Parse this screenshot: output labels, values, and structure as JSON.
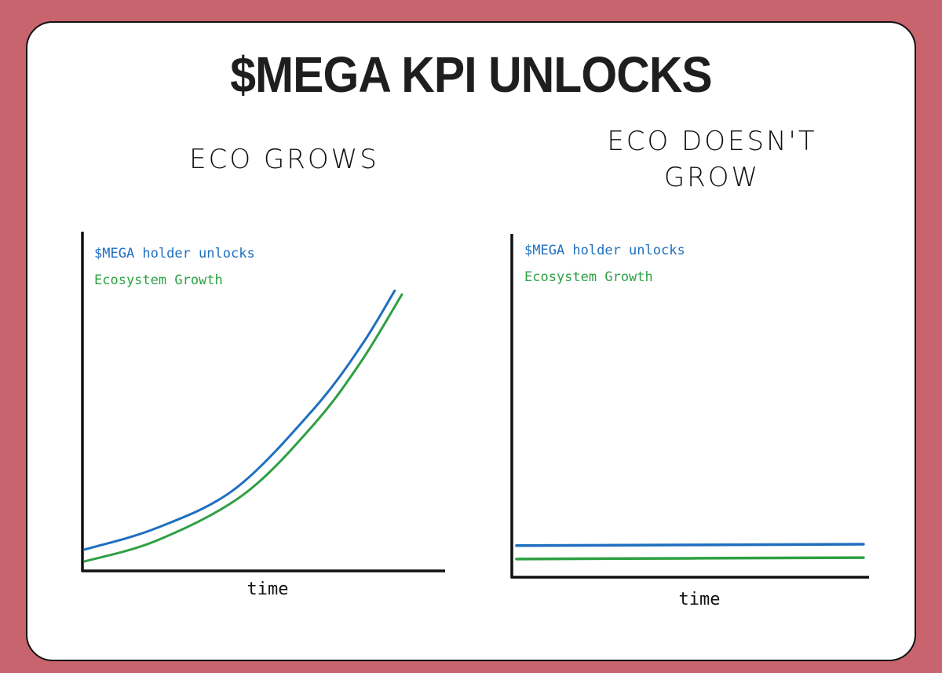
{
  "title": "$MEGA KPI UNLOCKS",
  "colors": {
    "background": "#c8646e",
    "blue": "#1f6fc0",
    "green": "#2ea043",
    "axis": "#111111"
  },
  "chart_data": [
    {
      "type": "line",
      "title": "ECO GROWS",
      "xlabel": "time",
      "ylabel": "",
      "grid": false,
      "legend": "top-left",
      "series": [
        {
          "name": "$MEGA holder unlocks",
          "color": "#1f6fc0",
          "x": [
            0.6,
            20.6,
            42.2,
            63.9,
            76.9,
            86.1
          ],
          "y": [
            6.3,
            12.7,
            24.3,
            47.9,
            66.4,
            82.6
          ]
        },
        {
          "name": "Ecosystem Growth",
          "color": "#2ea043",
          "x": [
            0.6,
            20.6,
            44.4,
            63.9,
            76.9,
            88.1
          ],
          "y": [
            2.8,
            9.0,
            22.5,
            43.3,
            61.8,
            81.5
          ]
        }
      ]
    },
    {
      "type": "line",
      "title": "ECO DOESN'T GROW",
      "title_lines": [
        "ECO DOESN'T",
        "GROW"
      ],
      "xlabel": "time",
      "ylabel": "",
      "grid": false,
      "legend": "top-left",
      "series": [
        {
          "name": "$MEGA holder unlocks",
          "color": "#1f6fc0",
          "x": [
            1.3,
            98.9
          ],
          "y": [
            9.2,
            9.6
          ]
        },
        {
          "name": "Ecosystem Growth",
          "color": "#2ea043",
          "x": [
            1.3,
            98.9
          ],
          "y": [
            5.3,
            5.7
          ]
        }
      ]
    }
  ]
}
